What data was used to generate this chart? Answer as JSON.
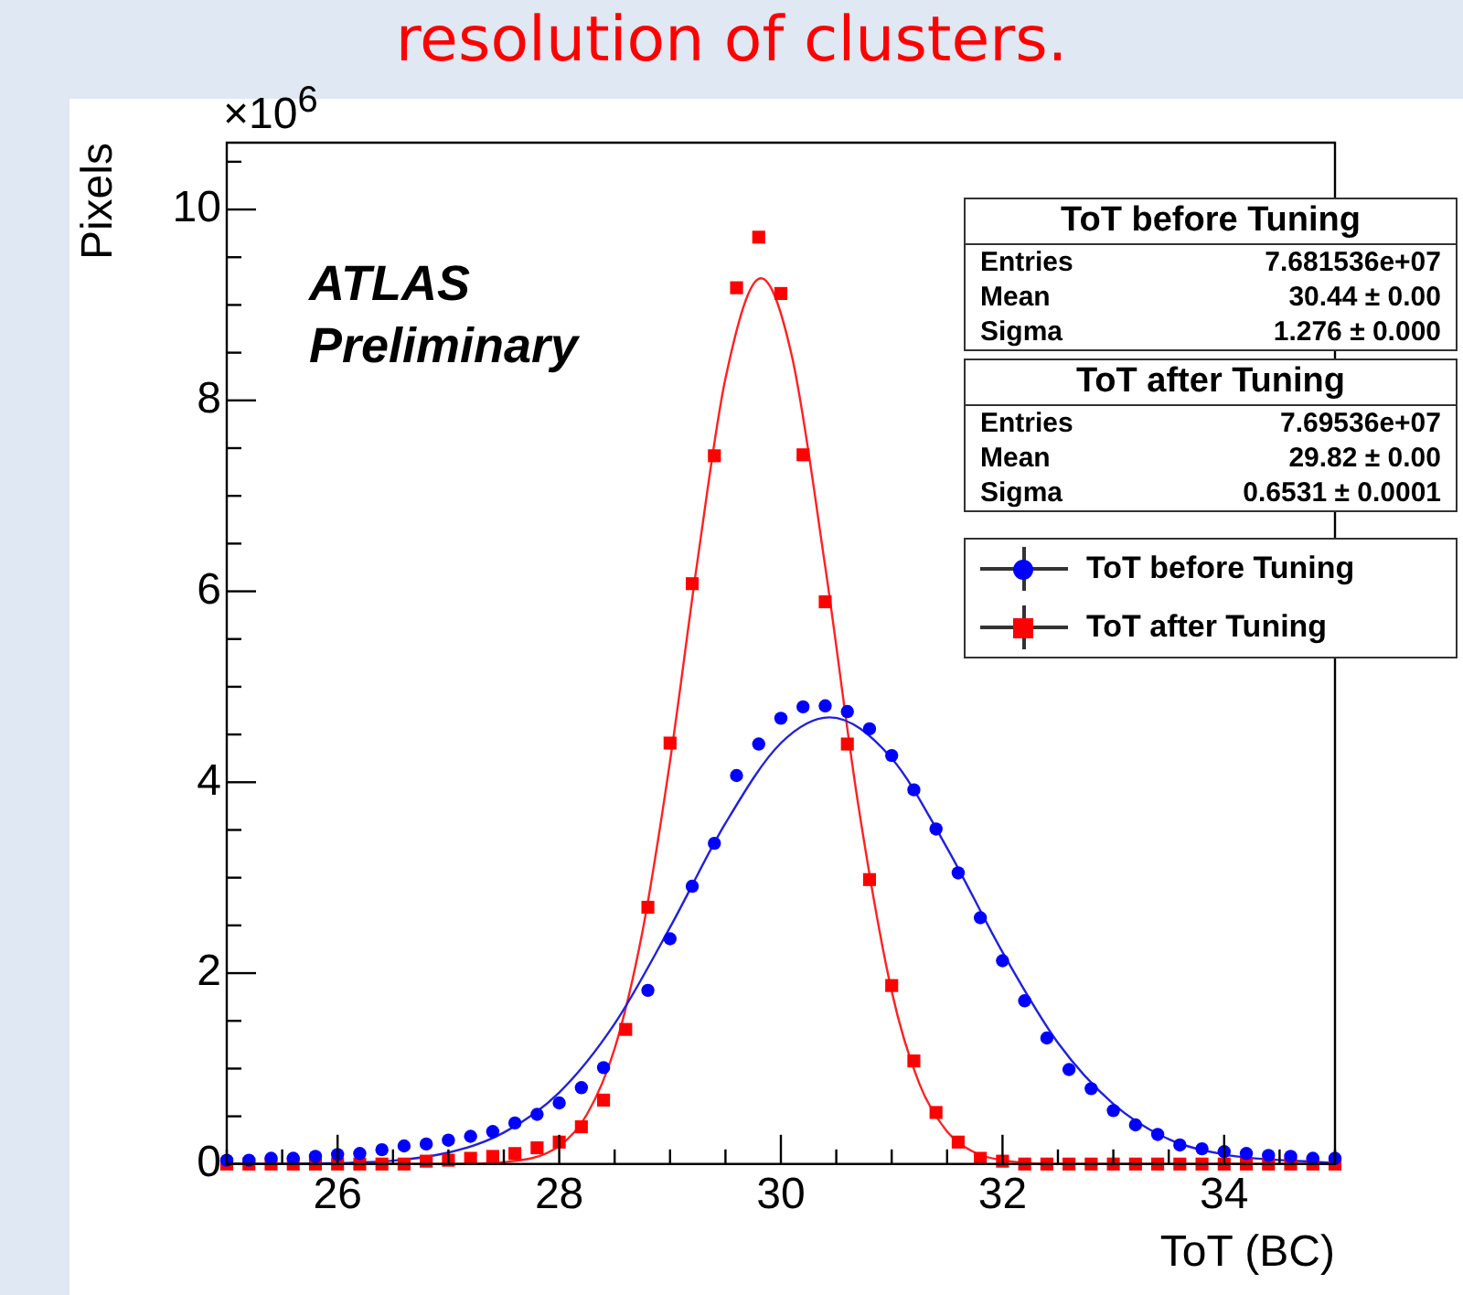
{
  "chart_data": {
    "type": "scatter",
    "title": "resolution of clusters.",
    "xlabel": "ToT (BC)",
    "ylabel": "Pixels",
    "annotations": [
      "ATLAS",
      "Preliminary",
      "×10$^{6}$",
      "ToT before Tuning",
      "Entries",
      "7.681536e+07",
      "Mean",
      "30.44 ± 0.00",
      "Sigma",
      "1.276 ± 0.000",
      "ToT after Tuning",
      "Entries",
      "7.69536e+07",
      "Mean",
      "29.82 ± 0.00",
      "Sigma",
      "0.6531 ± 0.0001"
    ],
    "x": [
      25.0,
      25.2,
      25.4,
      25.6,
      25.8,
      26.0,
      26.2,
      26.4,
      26.6,
      26.8,
      27.0,
      27.2,
      27.4,
      27.6,
      27.8,
      28.0,
      28.2,
      28.4,
      28.6,
      28.8,
      29.0,
      29.2,
      29.4,
      29.6,
      29.8,
      30.0,
      30.2,
      30.4,
      30.6,
      30.8,
      31.0,
      31.2,
      31.4,
      31.6,
      31.8,
      32.0,
      32.2,
      32.4,
      32.6,
      32.8,
      33.0,
      33.2,
      33.4,
      33.6,
      33.8,
      34.0,
      34.2,
      34.4,
      34.6,
      34.8,
      35.0
    ],
    "series": [
      {
        "name": "ToT before Tuning",
        "color": "#0000ff",
        "marker": "circle",
        "values": [
          0.04,
          0.04,
          0.06,
          0.06,
          0.08,
          0.1,
          0.11,
          0.15,
          0.19,
          0.21,
          0.25,
          0.29,
          0.34,
          0.43,
          0.52,
          0.64,
          0.8,
          1.01,
          null,
          1.82,
          2.36,
          2.91,
          3.36,
          4.07,
          4.4,
          4.67,
          4.79,
          4.8,
          4.74,
          4.56,
          4.28,
          3.92,
          3.51,
          3.05,
          2.58,
          2.13,
          1.71,
          1.32,
          0.99,
          0.79,
          0.56,
          0.41,
          0.31,
          0.2,
          0.16,
          0.13,
          0.11,
          0.09,
          0.08,
          0.06,
          0.06
        ]
      },
      {
        "name": "ToT after Tuning",
        "color": "#ff0000",
        "marker": "square",
        "values": [
          0,
          0,
          0,
          0,
          0,
          0,
          0,
          0,
          0,
          0.03,
          0.04,
          0.06,
          0.08,
          0.11,
          0.17,
          0.23,
          0.39,
          0.67,
          1.41,
          2.69,
          4.41,
          6.08,
          7.42,
          9.18,
          9.71,
          9.12,
          7.43,
          5.89,
          4.4,
          2.98,
          1.87,
          1.08,
          0.54,
          0.23,
          0.06,
          0.03,
          0,
          0,
          0,
          0,
          0,
          0,
          0,
          0,
          0,
          0,
          0,
          0,
          0,
          0,
          0
        ]
      },
      {
        "type": "line",
        "color": "#2020e0",
        "marker": "none",
        "x": [
          25,
          26,
          27,
          27.5,
          28,
          28.5,
          29,
          29.5,
          30,
          30.44,
          31,
          31.5,
          32,
          32.5,
          33,
          33.5,
          34,
          35
        ],
        "values": [
          0,
          0.01,
          0.12,
          0.33,
          0.75,
          1.47,
          2.48,
          3.57,
          4.41,
          4.68,
          4.25,
          3.31,
          2.22,
          1.27,
          0.63,
          0.26,
          0.1,
          0.01
        ]
      },
      {
        "type": "line",
        "color": "#ff2020",
        "marker": "none",
        "x": [
          25,
          27,
          27.5,
          28,
          28.25,
          28.5,
          28.75,
          29,
          29.25,
          29.5,
          29.82,
          30.1,
          30.4,
          30.7,
          31,
          31.25,
          31.5,
          31.75,
          32,
          32.5,
          35
        ],
        "values": [
          0,
          0,
          0.02,
          0.19,
          0.52,
          1.21,
          2.43,
          4.22,
          6.34,
          8.23,
          9.28,
          8.46,
          6.26,
          3.75,
          1.81,
          0.84,
          0.34,
          0.12,
          0.04,
          0,
          0
        ]
      }
    ],
    "xlim": [
      25,
      35
    ],
    "xticks": [
      {
        "value": 25,
        "label": null
      },
      {
        "value": 25.5,
        "label": null
      },
      26,
      {
        "value": 26.5,
        "label": null
      },
      {
        "value": 27,
        "label": null
      },
      {
        "value": 27.5,
        "label": null
      },
      28,
      {
        "value": 28.5,
        "label": null
      },
      {
        "value": 29,
        "label": null
      },
      {
        "value": 29.5,
        "label": null
      },
      30,
      {
        "value": 30.5,
        "label": null
      },
      {
        "value": 31,
        "label": null
      },
      {
        "value": 31.5,
        "label": null
      },
      32,
      {
        "value": 32.5,
        "label": null
      },
      {
        "value": 33,
        "label": null
      },
      {
        "value": 33.5,
        "label": null
      },
      34,
      {
        "value": 34.5,
        "label": null
      },
      {
        "value": 35,
        "label": null
      }
    ],
    "ylim": [
      0,
      10.7
    ],
    "yticks": [
      0,
      {
        "value": 0.5,
        "label": null
      },
      {
        "value": 1,
        "label": null
      },
      {
        "value": 1.5,
        "label": null
      },
      2,
      {
        "value": 2.5,
        "label": null
      },
      {
        "value": 3,
        "label": null
      },
      {
        "value": 3.5,
        "label": null
      },
      4,
      {
        "value": 4.5,
        "label": null
      },
      {
        "value": 5,
        "label": null
      },
      {
        "value": 5.5,
        "label": null
      },
      6,
      {
        "value": 6.5,
        "label": null
      },
      {
        "value": 7,
        "label": null
      },
      {
        "value": 7.5,
        "label": null
      },
      8,
      {
        "value": 8.5,
        "label": null
      },
      {
        "value": 9,
        "label": null
      },
      {
        "value": 9.5,
        "label": null
      },
      10,
      {
        "value": 10.5,
        "label": null
      }
    ],
    "grid": false,
    "legend": "top right"
  }
}
